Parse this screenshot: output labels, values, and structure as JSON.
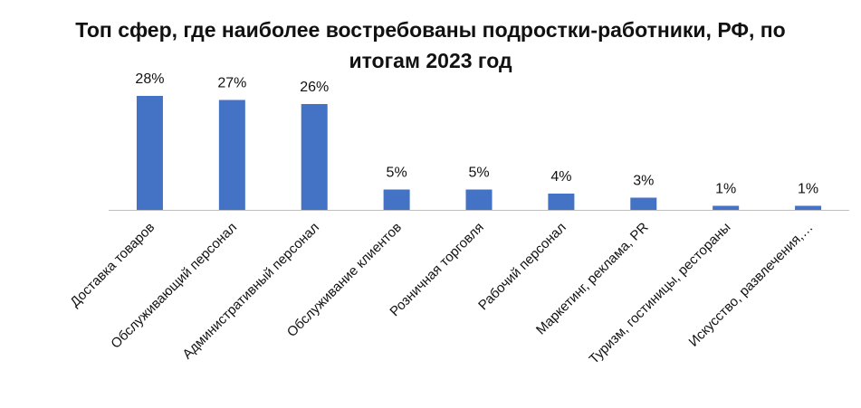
{
  "chart_data": {
    "type": "bar",
    "title_lines": [
      "Топ сфер, где наиболее востребованы подростки-работники, РФ, по",
      "итогам 2023 год"
    ],
    "categories": [
      "Доставка товаров",
      "Обслуживающий персонал",
      "Административный персонал",
      "Обслуживание клиентов",
      "Розничная торговля",
      "Рабочий персонал",
      "Маркетинг, реклама, PR",
      "Туризм, гостиницы, рестораны",
      "Искусство, развлечения,…"
    ],
    "values": [
      28,
      27,
      26,
      5,
      5,
      4,
      3,
      1,
      1
    ],
    "value_labels": [
      "28%",
      "27%",
      "26%",
      "5%",
      "5%",
      "4%",
      "3%",
      "1%",
      "1%"
    ],
    "ylim": [
      0,
      30
    ],
    "grid": false,
    "bar_color": "#4472C4",
    "axis_color": "#BFBFBF",
    "text_color": "#111111"
  }
}
